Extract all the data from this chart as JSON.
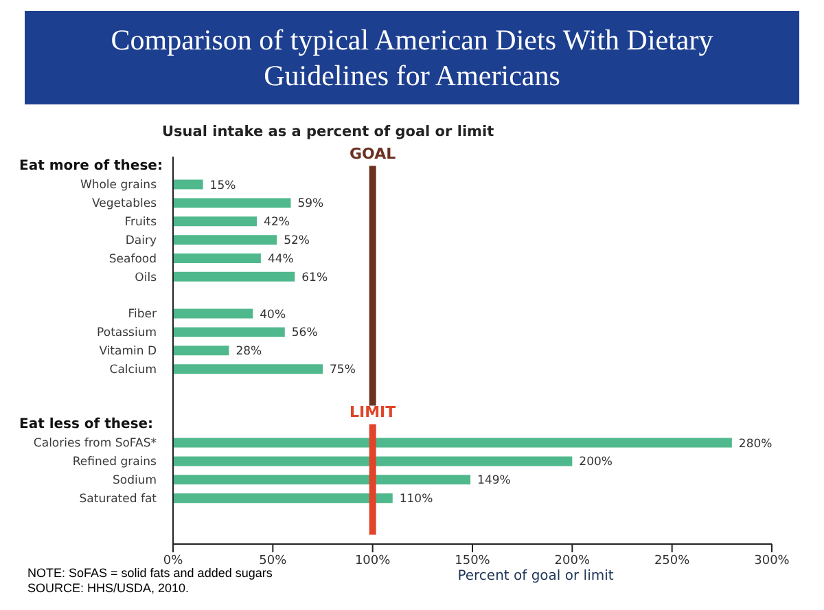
{
  "chart_data": {
    "type": "bar",
    "orientation": "horizontal",
    "title": "Comparison of typical American Diets With Dietary Guidelines for Americans",
    "subtitle": "Usual intake as a percent of goal or limit",
    "xlabel": "Percent of goal or limit",
    "categories": [
      null,
      "Whole grains",
      "Vegetables",
      "Fruits",
      "Dairy",
      "Seafood",
      "Oils",
      null,
      "Fiber",
      "Potassium",
      "Vitamin D",
      "Calcium",
      null,
      null,
      null,
      "Calories from SoFAS*",
      "Refined grains",
      "Sodium",
      "Saturated fat",
      null,
      null
    ],
    "values": [
      null,
      15,
      59,
      42,
      52,
      44,
      61,
      null,
      40,
      56,
      28,
      75,
      null,
      null,
      null,
      280,
      200,
      149,
      110,
      null,
      null
    ],
    "value_labels": [
      null,
      "15%",
      "59%",
      "42%",
      "52%",
      "44%",
      "61%",
      null,
      "40%",
      "56%",
      "28%",
      "75%",
      null,
      null,
      null,
      "280%",
      "200%",
      "149%",
      "110%",
      null,
      null
    ],
    "color": "#4fb88c",
    "xlim": [
      0,
      300
    ],
    "xticks": [
      {
        "value": 0,
        "label": "0%"
      },
      {
        "value": 50,
        "label": "50%"
      },
      {
        "value": 100,
        "label": "100%"
      },
      {
        "value": 150,
        "label": "150%"
      },
      {
        "value": 200,
        "label": "200%"
      },
      {
        "value": 250,
        "label": "250%"
      },
      {
        "value": 300,
        "label": "300%"
      }
    ],
    "ref_lines": [
      {
        "axis": "x",
        "value": 100,
        "label": "GOAL",
        "color": "#6b3222"
      },
      {
        "axis": "x",
        "value": 100,
        "label": "LIMIT",
        "color": "#e0452a"
      }
    ],
    "annotations": [
      "Eat more of these:",
      "Eat less of these:",
      "NOTE: SoFAS = solid fats and added sugars",
      "SOURCE: HHS/USDA, 2010."
    ],
    "grid": false,
    "legend": false
  }
}
